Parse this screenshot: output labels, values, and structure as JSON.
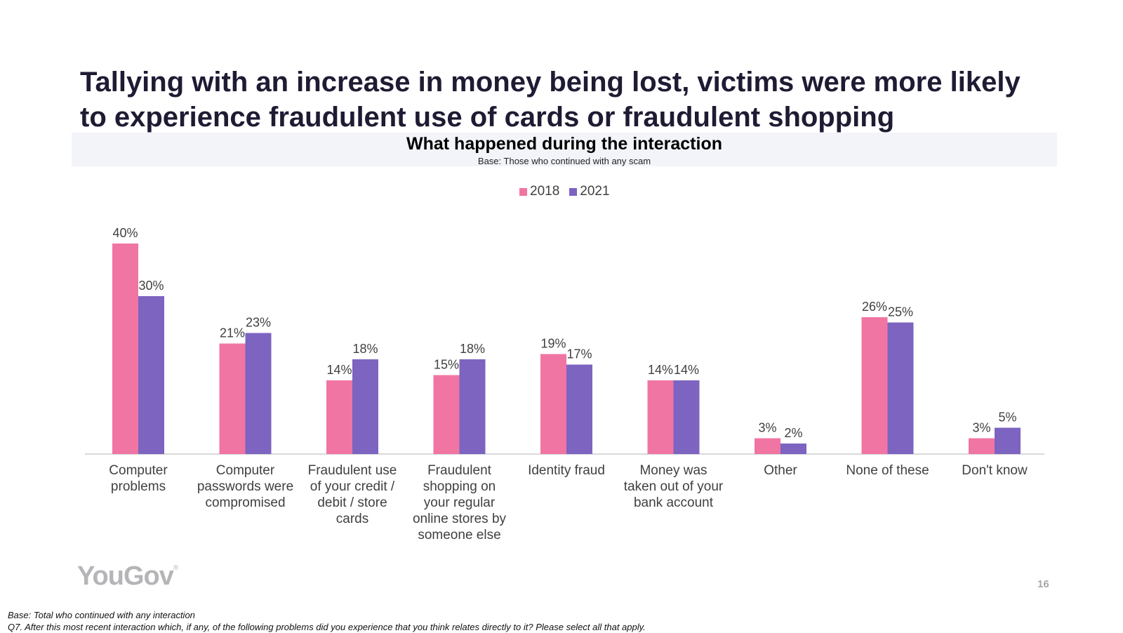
{
  "slide": {
    "title_line1": "Tallying with an increase in money being lost, victims were more likely",
    "title_line2": "to experience fraudulent use of cards or fraudulent shopping",
    "logo": "YouGov",
    "page_number": "16",
    "footnote_base": "Base: Total who continued with any interaction",
    "footnote_question": "Q7. After this most recent interaction which, if any, of the following problems did you experience that you think relates directly to it? Please select all that apply."
  },
  "colors": {
    "series_2018": "#f075a3",
    "series_2021": "#7c64c0",
    "axis": "#d9d9d9",
    "label": "#404040"
  },
  "chart_data": {
    "type": "bar",
    "title": "What happened during the interaction",
    "subtitle": "Base: Those who continued with any scam",
    "legend_position": "top-center",
    "grid": false,
    "ylim": [
      0,
      40
    ],
    "categories": [
      [
        "Computer",
        "problems"
      ],
      [
        "Computer",
        "passwords were",
        "compromised"
      ],
      [
        "Fraudulent use",
        "of your credit /",
        "debit / store",
        "cards"
      ],
      [
        "Fraudulent",
        "shopping on",
        "your regular",
        "online stores by",
        "someone else"
      ],
      [
        "Identity fraud"
      ],
      [
        "Money was",
        "taken out of your",
        "bank account"
      ],
      [
        "Other"
      ],
      [
        "None of these"
      ],
      [
        "Don't know"
      ]
    ],
    "series": [
      {
        "name": "2018",
        "values": [
          40,
          21,
          14,
          15,
          19,
          14,
          3,
          26,
          3
        ],
        "labels": [
          "40%",
          "21%",
          "14%",
          "15%",
          "19%",
          "14%",
          "3%",
          "26%",
          "3%"
        ]
      },
      {
        "name": "2021",
        "values": [
          30,
          23,
          18,
          18,
          17,
          14,
          2,
          25,
          5
        ],
        "labels": [
          "30%",
          "23%",
          "18%",
          "18%",
          "17%",
          "14%",
          "2%",
          "25%",
          "5%"
        ]
      }
    ]
  }
}
